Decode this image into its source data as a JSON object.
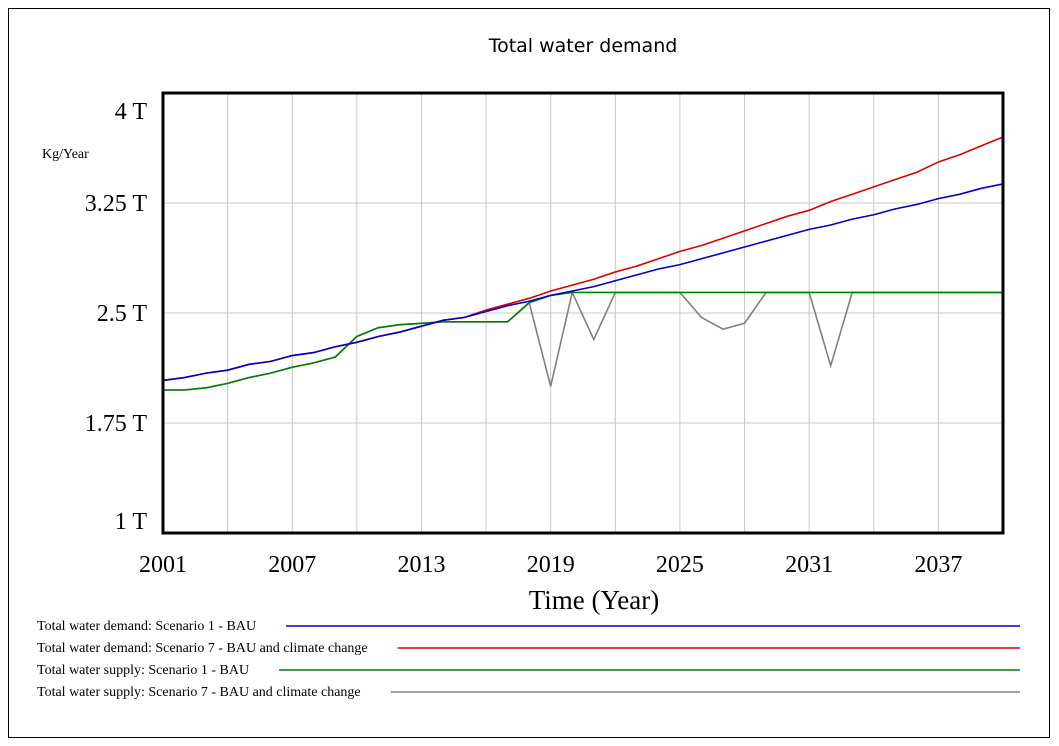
{
  "chart_data": {
    "type": "line",
    "title": "Total water demand",
    "y_unit_label": "Kg/Year",
    "x_label": "Time (Year)",
    "x": [
      2001,
      2002,
      2003,
      2004,
      2005,
      2006,
      2007,
      2008,
      2009,
      2010,
      2011,
      2012,
      2013,
      2014,
      2015,
      2016,
      2017,
      2018,
      2019,
      2020,
      2021,
      2022,
      2023,
      2024,
      2025,
      2026,
      2027,
      2028,
      2029,
      2030,
      2031,
      2032,
      2033,
      2034,
      2035,
      2036,
      2037,
      2038,
      2039,
      2040
    ],
    "xlim": [
      2001,
      2040
    ],
    "xticks": [
      2001,
      2007,
      2013,
      2019,
      2025,
      2031,
      2037
    ],
    "minor_xticks": [
      2004,
      2010,
      2016,
      2022,
      2028,
      2034
    ],
    "ylim": [
      1,
      4
    ],
    "yticks": [
      {
        "value": 1,
        "label": "1 T"
      },
      {
        "value": 1.75,
        "label": "1.75 T"
      },
      {
        "value": 2.5,
        "label": "2.5 T"
      },
      {
        "value": 3.25,
        "label": "3.25 T"
      },
      {
        "value": 4,
        "label": "4 T"
      }
    ],
    "grid": true,
    "series": [
      {
        "name": "Total water demand: Scenario 1 - BAU",
        "color": "#0000cc",
        "values": [
          2.04,
          2.06,
          2.09,
          2.11,
          2.15,
          2.17,
          2.21,
          2.23,
          2.27,
          2.3,
          2.34,
          2.37,
          2.41,
          2.45,
          2.47,
          2.51,
          2.55,
          2.58,
          2.62,
          2.65,
          2.68,
          2.72,
          2.76,
          2.8,
          2.83,
          2.87,
          2.91,
          2.95,
          2.99,
          3.03,
          3.07,
          3.1,
          3.14,
          3.17,
          3.21,
          3.24,
          3.28,
          3.31,
          3.35,
          3.38
        ]
      },
      {
        "name": "Total water demand: Scenario 7 - BAU and climate change",
        "color": "#e00000",
        "values": [
          2.04,
          2.06,
          2.09,
          2.11,
          2.15,
          2.17,
          2.21,
          2.23,
          2.27,
          2.3,
          2.34,
          2.37,
          2.41,
          2.45,
          2.47,
          2.52,
          2.56,
          2.6,
          2.65,
          2.69,
          2.73,
          2.78,
          2.82,
          2.87,
          2.92,
          2.96,
          3.01,
          3.06,
          3.11,
          3.16,
          3.2,
          3.26,
          3.31,
          3.36,
          3.41,
          3.46,
          3.53,
          3.58,
          3.64,
          3.7
        ]
      },
      {
        "name": "Total water supply: Scenario 1 - BAU",
        "color": "#008000",
        "values": [
          1.975,
          1.975,
          1.99,
          2.02,
          2.06,
          2.09,
          2.13,
          2.16,
          2.2,
          2.34,
          2.4,
          2.42,
          2.43,
          2.44,
          2.44,
          2.44,
          2.44,
          2.57,
          2.62,
          2.64,
          2.64,
          2.64,
          2.64,
          2.64,
          2.64,
          2.64,
          2.64,
          2.64,
          2.64,
          2.64,
          2.64,
          2.64,
          2.64,
          2.64,
          2.64,
          2.64,
          2.64,
          2.64,
          2.64,
          2.64
        ]
      },
      {
        "name": "Total water supply: Scenario 7 - BAU and climate change",
        "color": "#808080",
        "values": [
          1.975,
          1.975,
          1.99,
          2.02,
          2.06,
          2.09,
          2.13,
          2.16,
          2.2,
          2.34,
          2.4,
          2.42,
          2.43,
          2.44,
          2.44,
          2.44,
          2.44,
          2.57,
          2.0,
          2.64,
          2.32,
          2.64,
          2.64,
          2.64,
          2.64,
          2.47,
          2.39,
          2.43,
          2.64,
          2.64,
          2.64,
          2.14,
          2.64,
          2.64,
          2.64,
          2.64,
          2.64,
          2.64,
          2.64,
          2.64
        ]
      }
    ]
  }
}
